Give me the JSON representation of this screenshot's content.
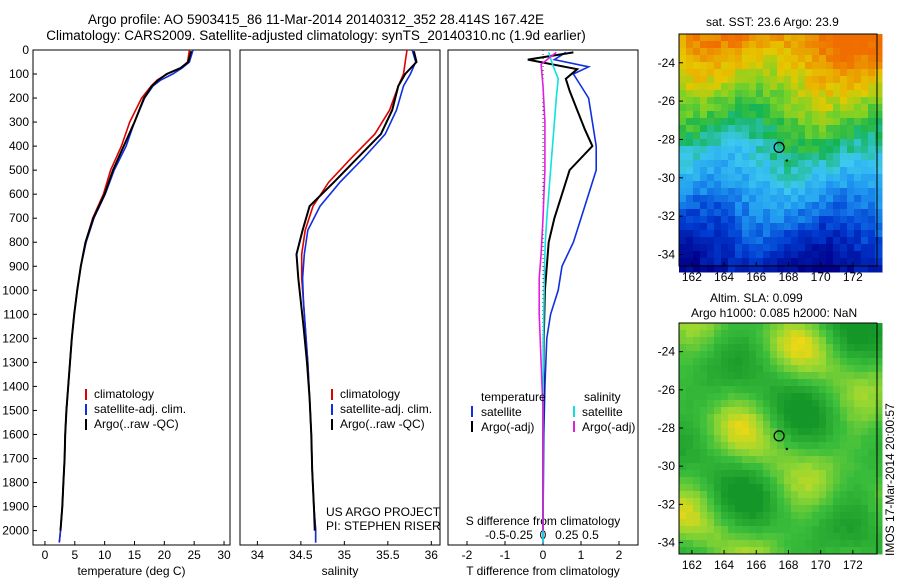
{
  "title_line1": "Argo profile: AO 5903415_86 11-Mar-2014 20140312_352 28.414S 167.42E",
  "title_line2": "Climatology: CARS2009. Satellite-adjusted climatology: synTS_20140310.nc (1.9d earlier)",
  "colors": {
    "clim": "#e00000",
    "sat": "#1030e0",
    "argo": "#000000",
    "sat_sal": "#10e0e0",
    "argo_sal": "#e020e0"
  },
  "chart_data": [
    {
      "id": "temperature",
      "type": "line",
      "xlabel": "temperature (deg C)",
      "xlim": [
        -2,
        31
      ],
      "ylim": [
        2060,
        0
      ],
      "xticks": [
        0,
        5,
        10,
        15,
        20,
        25,
        30
      ],
      "yticks": [
        0,
        100,
        200,
        300,
        400,
        500,
        600,
        700,
        800,
        900,
        1000,
        1100,
        1200,
        1300,
        1400,
        1500,
        1600,
        1700,
        1800,
        1900,
        2000
      ],
      "legend": [
        "climatology",
        "satellite-adj. clim.",
        "Argo(..raw -QC)"
      ],
      "series": [
        {
          "name": "climatology",
          "color": "clim",
          "x": [
            24.2,
            23.9,
            22.8,
            20.5,
            18.8,
            17.8,
            16.2,
            14.2,
            12.8,
            11.0,
            9.8,
            8.0,
            6.8,
            6.0,
            5.4,
            4.9,
            4.5,
            4.2,
            3.9,
            3.6,
            3.4,
            3.3,
            3.1,
            2.9,
            2.6,
            2.4
          ],
          "y": [
            0,
            50,
            75,
            100,
            125,
            150,
            200,
            300,
            400,
            500,
            600,
            700,
            800,
            900,
            1000,
            1100,
            1200,
            1300,
            1400,
            1500,
            1600,
            1700,
            1800,
            1900,
            2000,
            2050
          ]
        },
        {
          "name": "satellite-adj. clim.",
          "color": "sat",
          "x": [
            24.8,
            24.2,
            23.0,
            21.4,
            19.4,
            18.1,
            16.7,
            15.0,
            13.6,
            11.6,
            10.1,
            8.2,
            6.9,
            6.0,
            5.4,
            4.9,
            4.5,
            4.2,
            3.9,
            3.6,
            3.4,
            3.3,
            3.1,
            2.9,
            2.6,
            2.4
          ],
          "y": [
            0,
            50,
            75,
            100,
            125,
            150,
            200,
            300,
            400,
            500,
            600,
            700,
            800,
            900,
            1000,
            1100,
            1200,
            1300,
            1400,
            1500,
            1600,
            1700,
            1800,
            1900,
            2000,
            2050
          ]
        },
        {
          "name": "Argo(..raw -QC)",
          "color": "argo",
          "x": [
            24.5,
            24.0,
            22.7,
            20.4,
            19.0,
            17.9,
            16.6,
            15.0,
            13.2,
            11.4,
            10.0,
            8.1,
            6.8,
            6.0,
            5.4,
            4.9,
            4.5,
            4.2,
            3.9,
            3.6,
            3.4,
            3.3,
            3.1,
            2.9,
            2.6
          ],
          "y": [
            5,
            50,
            75,
            100,
            125,
            150,
            200,
            300,
            400,
            500,
            600,
            700,
            800,
            900,
            1000,
            1100,
            1200,
            1300,
            1400,
            1500,
            1600,
            1700,
            1800,
            1900,
            2000
          ]
        }
      ]
    },
    {
      "id": "salinity",
      "type": "line",
      "xlabel": "salinity",
      "xlim": [
        33.8,
        36.1
      ],
      "ylim": [
        2060,
        0
      ],
      "xticks": [
        34,
        34.5,
        35,
        35.5,
        36
      ],
      "legend": [
        "climatology",
        "satellite-adj. clim.",
        "Argo(..raw -QC)"
      ],
      "series": [
        {
          "name": "climatology",
          "color": "clim",
          "x": [
            35.72,
            35.7,
            35.68,
            35.62,
            35.52,
            35.35,
            35.08,
            34.82,
            34.64,
            34.55,
            34.51,
            34.51,
            34.53,
            34.55,
            34.58,
            34.6,
            34.62,
            34.63,
            34.65,
            34.67,
            34.67
          ],
          "y": [
            0,
            50,
            100,
            150,
            250,
            350,
            450,
            550,
            650,
            750,
            850,
            950,
            1050,
            1150,
            1300,
            1450,
            1600,
            1750,
            1900,
            2000,
            2050
          ]
        },
        {
          "name": "satellite-adj. clim.",
          "color": "sat",
          "x": [
            35.78,
            35.82,
            35.76,
            35.68,
            35.6,
            35.47,
            35.22,
            34.95,
            34.72,
            34.58,
            34.54,
            34.52,
            34.53,
            34.55,
            34.58,
            34.6,
            34.62,
            34.63,
            34.65,
            34.67,
            34.67
          ],
          "y": [
            0,
            50,
            100,
            150,
            250,
            350,
            450,
            550,
            650,
            750,
            850,
            950,
            1050,
            1150,
            1300,
            1450,
            1600,
            1750,
            1900,
            2000,
            2050
          ]
        },
        {
          "name": "Argo(..raw -QC)",
          "color": "argo",
          "x": [
            35.8,
            35.83,
            35.7,
            35.62,
            35.55,
            35.42,
            35.15,
            34.88,
            34.6,
            34.52,
            34.45,
            34.47,
            34.5,
            34.53,
            34.57,
            34.6,
            34.62,
            34.63,
            34.65,
            34.66
          ],
          "y": [
            5,
            50,
            100,
            150,
            250,
            350,
            450,
            550,
            650,
            750,
            850,
            950,
            1050,
            1150,
            1300,
            1450,
            1600,
            1750,
            1900,
            2000
          ]
        }
      ]
    },
    {
      "id": "differences",
      "type": "line",
      "xlabel": "T difference from climatology",
      "xlabel_top": "S difference from climatology",
      "xlim": [
        -2.5,
        2.5
      ],
      "ylim": [
        2060,
        0
      ],
      "xticks_T": [
        -2,
        -1,
        0,
        1,
        2
      ],
      "xticks_S": [
        "-0.5",
        "-0.25",
        "0",
        "0.25",
        "0.5"
      ],
      "legend_left_title": "temperature",
      "legend_right_title": "salinity",
      "legend_left": [
        "satellite",
        "Argo(-adj)"
      ],
      "legend_right": [
        "satellite",
        "Argo(-adj)"
      ],
      "series": [
        {
          "name": "temperature satellite",
          "color": "sat",
          "x": [
            0.6,
            0.3,
            1.2,
            0.8,
            1.0,
            1.2,
            1.3,
            1.4,
            1.4,
            1.2,
            1.0,
            0.8,
            0.5,
            0.4,
            0.2,
            0.1,
            0.05,
            0.02,
            0.01,
            0.0,
            0.0
          ],
          "y": [
            10,
            40,
            70,
            100,
            150,
            200,
            300,
            400,
            500,
            600,
            700,
            800,
            900,
            1000,
            1100,
            1200,
            1400,
            1600,
            1800,
            1950,
            2050
          ]
        },
        {
          "name": "temperature Argo(-adj)",
          "color": "argo",
          "x": [
            0.8,
            -0.4,
            0.9,
            0.6,
            0.7,
            0.9,
            1.1,
            1.3,
            0.7,
            0.5,
            0.3,
            0.15,
            0.1,
            0.05,
            0.02,
            0.01,
            0.0,
            0.0,
            0.0
          ],
          "y": [
            10,
            40,
            80,
            120,
            170,
            250,
            330,
            400,
            500,
            600,
            700,
            800,
            900,
            1000,
            1200,
            1400,
            1600,
            1800,
            2000
          ]
        },
        {
          "name": "salinity satellite",
          "color": "sat_sal",
          "x": [
            0.15,
            0.25,
            0.4,
            0.35,
            0.3,
            0.25,
            0.2,
            0.15,
            0.1,
            0.06,
            0.04,
            0.02,
            0.0,
            0.0
          ],
          "y": [
            10,
            60,
            120,
            200,
            300,
            400,
            500,
            600,
            700,
            800,
            900,
            1100,
            1500,
            2050
          ]
        },
        {
          "name": "salinity Argo(-adj)",
          "color": "argo_sal",
          "x": [
            0.35,
            -0.05,
            0.0,
            0.05,
            0.05,
            0.0,
            -0.05,
            -0.1,
            -0.1,
            -0.05,
            0.0,
            0.0,
            0.0
          ],
          "y": [
            10,
            60,
            150,
            300,
            500,
            700,
            850,
            950,
            1100,
            1300,
            1500,
            1800,
            2000
          ]
        }
      ]
    },
    {
      "id": "sst-map",
      "type": "heatmap",
      "title": "sat. SST: 23.6 Argo: 23.9",
      "xticks": [
        162,
        164,
        166,
        168,
        170,
        172
      ],
      "yticks": [
        -24,
        -26,
        -28,
        -30,
        -32,
        -34
      ],
      "xlim": [
        161.2,
        173.5
      ],
      "ylim": [
        -34.6,
        -22.5
      ]
    },
    {
      "id": "sla-map",
      "type": "heatmap",
      "title_line1": "Altim. SLA: 0.099",
      "title_line2": "Argo h1000: 0.085 h2000: NaN",
      "xticks": [
        162,
        164,
        166,
        168,
        170,
        172
      ],
      "yticks": [
        -24,
        -26,
        -28,
        -30,
        -32,
        -34
      ],
      "xlim": [
        161.2,
        173.5
      ],
      "ylim": [
        -34.6,
        -22.5
      ]
    }
  ],
  "credit": {
    "project": "US ARGO PROJECT",
    "pi": "PI: STEPHEN RISER"
  },
  "side_label": "IMOS 17-Mar-2014 20:00:57"
}
